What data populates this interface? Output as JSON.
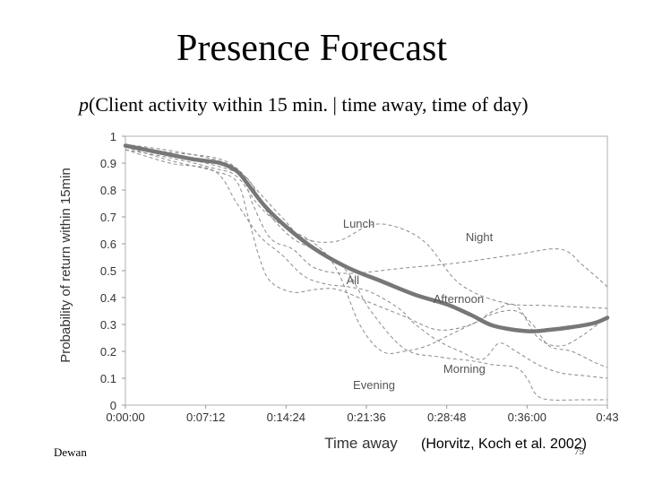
{
  "slide": {
    "title": "Presence Forecast",
    "subtitle_italic": "p",
    "subtitle_rest": "(Client activity within 15 min. | time away, time of day)",
    "author": "Dewan",
    "citation": "(Horvitz, Koch et al. 2002)",
    "page_number": "75"
  },
  "chart_data": {
    "type": "line",
    "xlabel": "Time away",
    "ylabel": "Probability of return within 15min",
    "x_unit": "minutes",
    "x_ticks": [
      "0:00:00",
      "0:07:12",
      "0:14:24",
      "0:21:36",
      "0:28:48",
      "0:36:00",
      "0:43"
    ],
    "x_tick_values": [
      0,
      7.2,
      14.4,
      21.6,
      28.8,
      36,
      43.2
    ],
    "xlim": [
      0,
      43.2
    ],
    "y_ticks": [
      "0",
      "0.1",
      "0.2",
      "0.3",
      "0.4",
      "0.5",
      "0.6",
      "0.7",
      "0.8",
      "0.9",
      "1"
    ],
    "ylim": [
      0,
      1
    ],
    "grid": false,
    "colors": {
      "all": "#777777",
      "other": "#8a8a8a",
      "frame": "#b0b0b0"
    },
    "series": [
      {
        "name": "All",
        "emphasis": true,
        "x": [
          0,
          3,
          6,
          8.5,
          10,
          11,
          12.5,
          14.5,
          17,
          20,
          23,
          26,
          28.8,
          31,
          33,
          36,
          38,
          40,
          42,
          43.2
        ],
        "y": [
          0.965,
          0.94,
          0.915,
          0.9,
          0.87,
          0.82,
          0.74,
          0.66,
          0.58,
          0.51,
          0.46,
          0.41,
          0.375,
          0.335,
          0.295,
          0.275,
          0.28,
          0.29,
          0.305,
          0.325
        ]
      },
      {
        "name": "Lunch",
        "x": [
          0,
          4,
          8,
          10,
          12,
          14,
          16,
          19,
          22,
          24.5,
          27,
          30,
          34,
          38,
          43.2
        ],
        "y": [
          0.96,
          0.94,
          0.92,
          0.88,
          0.79,
          0.7,
          0.62,
          0.61,
          0.67,
          0.66,
          0.6,
          0.45,
          0.38,
          0.37,
          0.36
        ]
      },
      {
        "name": "Night",
        "x": [
          0,
          5,
          9,
          10.5,
          11.5,
          13,
          15,
          17,
          20,
          25,
          30,
          35,
          39,
          41,
          43.2
        ],
        "y": [
          0.97,
          0.94,
          0.9,
          0.85,
          0.74,
          0.62,
          0.58,
          0.51,
          0.49,
          0.51,
          0.53,
          0.56,
          0.58,
          0.52,
          0.44
        ]
      },
      {
        "name": "All",
        "comment": "second path",
        "x": [
          0,
          4,
          8,
          10,
          12,
          14,
          16,
          18,
          20,
          22,
          24.5,
          26,
          28,
          30,
          32,
          33.5,
          35,
          37,
          39,
          41,
          43.2
        ],
        "y": [
          0.95,
          0.9,
          0.87,
          0.75,
          0.63,
          0.56,
          0.48,
          0.45,
          0.44,
          0.42,
          0.36,
          0.3,
          0.24,
          0.2,
          0.17,
          0.23,
          0.2,
          0.15,
          0.12,
          0.11,
          0.1
        ]
      },
      {
        "name": "Afternoon",
        "x": [
          0,
          4,
          8,
          10,
          11,
          12,
          13,
          15,
          17,
          19,
          22,
          25,
          28,
          31,
          33,
          35,
          37,
          39,
          41,
          43.2
        ],
        "y": [
          0.96,
          0.91,
          0.87,
          0.83,
          0.7,
          0.55,
          0.46,
          0.42,
          0.43,
          0.43,
          0.38,
          0.33,
          0.28,
          0.3,
          0.35,
          0.37,
          0.25,
          0.22,
          0.26,
          0.33
        ]
      },
      {
        "name": "Morning",
        "x": [
          0,
          4,
          8,
          10,
          12,
          14,
          17,
          19,
          21,
          23,
          25,
          27,
          29,
          31,
          33,
          35,
          36.5,
          38,
          40,
          42,
          43.2
        ],
        "y": [
          0.95,
          0.92,
          0.88,
          0.85,
          0.74,
          0.67,
          0.6,
          0.5,
          0.3,
          0.2,
          0.2,
          0.22,
          0.26,
          0.3,
          0.34,
          0.35,
          0.3,
          0.22,
          0.2,
          0.16,
          0.14
        ]
      },
      {
        "name": "Evening",
        "x": [
          0,
          5,
          9,
          11,
          12.5,
          15,
          18,
          20,
          22,
          25,
          28,
          31,
          33,
          35,
          36,
          36.8,
          38,
          41,
          43.2
        ],
        "y": [
          0.96,
          0.92,
          0.88,
          0.84,
          0.73,
          0.62,
          0.56,
          0.49,
          0.35,
          0.21,
          0.18,
          0.165,
          0.15,
          0.14,
          0.1,
          0.04,
          0.02,
          0.02,
          0.02
        ]
      }
    ],
    "annotations": [
      {
        "text": "Lunch",
        "x": 19.5,
        "y": 0.66
      },
      {
        "text": "Night",
        "x": 30.5,
        "y": 0.61
      },
      {
        "text": "All",
        "x": 19.8,
        "y": 0.45
      },
      {
        "text": "Afternoon",
        "x": 27.6,
        "y": 0.38
      },
      {
        "text": "Morning",
        "x": 28.5,
        "y": 0.12
      },
      {
        "text": "Evening",
        "x": 20.4,
        "y": 0.06
      }
    ]
  }
}
